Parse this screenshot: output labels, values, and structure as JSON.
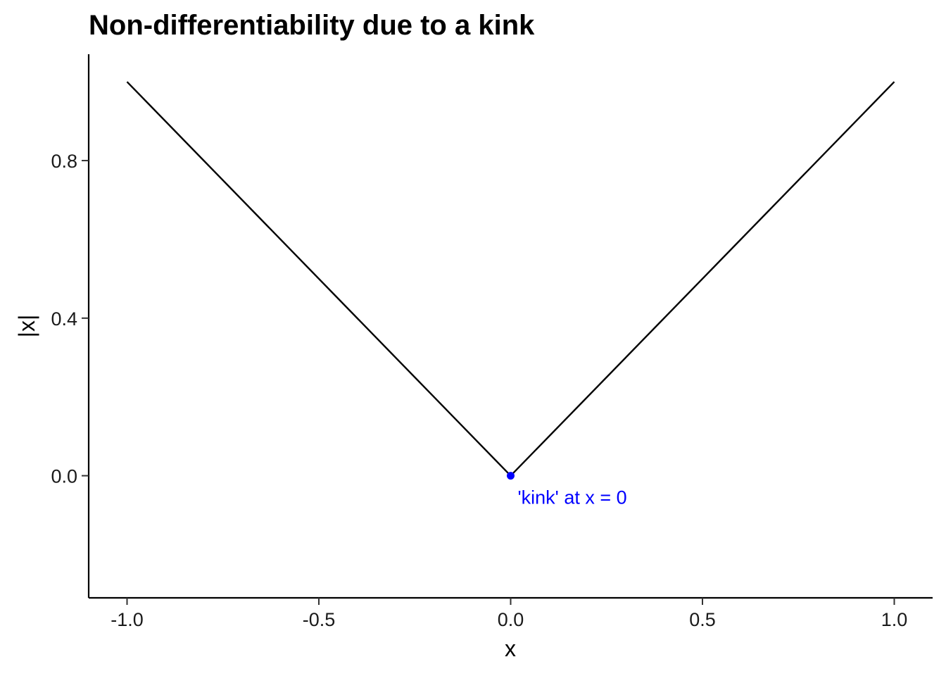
{
  "chart_data": {
    "type": "line",
    "title": "Non-differentiability due to a kink",
    "xlabel": "x",
    "ylabel": "|x|",
    "xlim": [
      -1.1,
      1.1
    ],
    "ylim": [
      -0.31,
      1.07
    ],
    "x_ticks": [
      -1.0,
      -0.5,
      0.0,
      0.5,
      1.0
    ],
    "x_tick_labels": [
      "-1.0",
      "-0.5",
      "0.0",
      "0.5",
      "1.0"
    ],
    "y_ticks": [
      0.0,
      0.4,
      0.8
    ],
    "y_tick_labels": [
      "0.0",
      "0.4",
      "0.8"
    ],
    "grid": false,
    "series": [
      {
        "x": [
          -1.0,
          0.0,
          1.0
        ],
        "y": [
          1.0,
          0.0,
          1.0
        ],
        "color": "#000000"
      }
    ],
    "points": [
      {
        "x": 0.0,
        "y": 0.0,
        "color": "#0000ff"
      }
    ],
    "annotations": [
      {
        "text": "'kink' at x = 0",
        "x": 0.0,
        "y": 0.0,
        "color": "#0000ff"
      }
    ]
  }
}
